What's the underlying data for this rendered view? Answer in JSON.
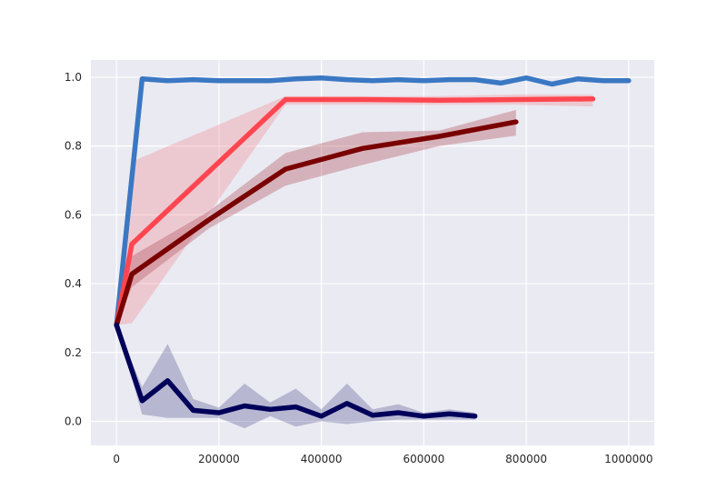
{
  "chart_data": {
    "type": "line",
    "title": "",
    "xlabel": "",
    "ylabel": "",
    "xlim": [
      -50000,
      1050000
    ],
    "ylim": [
      -0.07,
      1.05
    ],
    "grid": true,
    "legend": "none",
    "background": "#eaeaf2",
    "grid_color": "#ffffff",
    "x_ticks": [
      0,
      200000,
      400000,
      600000,
      800000,
      1000000
    ],
    "x_tick_labels": [
      "0",
      "200000",
      "400000",
      "600000",
      "800000",
      "1000000"
    ],
    "y_ticks": [
      0.0,
      0.2,
      0.4,
      0.6,
      0.8,
      1.0
    ],
    "y_tick_labels": [
      "0.0",
      "0.2",
      "0.4",
      "0.6",
      "0.8",
      "1.0"
    ],
    "series": [
      {
        "color": "#3b78c3",
        "band_color": "#3b78c3",
        "x": [
          0,
          50000,
          100000,
          150000,
          200000,
          250000,
          300000,
          350000,
          400000,
          450000,
          500000,
          550000,
          600000,
          650000,
          700000,
          750000,
          800000,
          850000,
          900000,
          950000,
          1000000
        ],
        "y": [
          0.28,
          0.995,
          0.99,
          0.993,
          0.99,
          0.99,
          0.99,
          0.995,
          0.998,
          0.993,
          0.99,
          0.993,
          0.99,
          0.993,
          0.993,
          0.983,
          0.998,
          0.98,
          0.995,
          0.99,
          0.99
        ],
        "lower": [
          0.28,
          0.99,
          0.985,
          0.99,
          0.985,
          0.985,
          0.985,
          0.99,
          0.995,
          0.99,
          0.985,
          0.99,
          0.985,
          0.99,
          0.99,
          0.978,
          0.995,
          0.975,
          0.99,
          0.985,
          0.985
        ],
        "upper": [
          0.28,
          1.0,
          0.995,
          0.996,
          0.995,
          0.995,
          0.995,
          1.0,
          1.0,
          0.996,
          0.995,
          0.996,
          0.995,
          0.996,
          0.996,
          0.988,
          1.0,
          0.985,
          1.0,
          0.995,
          0.995
        ]
      },
      {
        "color": "#ff4650",
        "band_color": "#f08c96",
        "x": [
          0,
          30000,
          330000,
          480000,
          630000,
          780000,
          930000
        ],
        "y": [
          0.28,
          0.515,
          0.935,
          0.935,
          0.933,
          0.935,
          0.937
        ],
        "lower": [
          0.28,
          0.285,
          0.92,
          0.92,
          0.92,
          0.92,
          0.915
        ],
        "upper": [
          0.28,
          0.755,
          0.945,
          0.945,
          0.945,
          0.95,
          0.95
        ]
      },
      {
        "color": "#7a0000",
        "band_color": "#b04a55",
        "x": [
          0,
          30000,
          180000,
          330000,
          480000,
          630000,
          780000
        ],
        "y": [
          0.28,
          0.428,
          0.585,
          0.733,
          0.793,
          0.828,
          0.87
        ],
        "lower": [
          0.28,
          0.39,
          0.56,
          0.685,
          0.745,
          0.8,
          0.83
        ],
        "upper": [
          0.28,
          0.48,
          0.61,
          0.78,
          0.84,
          0.845,
          0.905
        ]
      },
      {
        "color": "#00005a",
        "band_color": "#5a5a96",
        "x": [
          0,
          50000,
          100000,
          150000,
          200000,
          250000,
          300000,
          350000,
          400000,
          450000,
          500000,
          550000,
          600000,
          650000,
          700000
        ],
        "y": [
          0.28,
          0.06,
          0.118,
          0.032,
          0.025,
          0.045,
          0.035,
          0.042,
          0.015,
          0.052,
          0.018,
          0.025,
          0.015,
          0.022,
          0.015
        ],
        "lower": [
          0.28,
          0.02,
          0.01,
          0.01,
          0.01,
          -0.02,
          0.015,
          -0.015,
          0.0,
          -0.008,
          0.0,
          0.005,
          0.005,
          0.005,
          0.005
        ],
        "upper": [
          0.28,
          0.1,
          0.225,
          0.065,
          0.04,
          0.11,
          0.055,
          0.095,
          0.035,
          0.11,
          0.035,
          0.05,
          0.025,
          0.035,
          0.025
        ]
      }
    ]
  }
}
